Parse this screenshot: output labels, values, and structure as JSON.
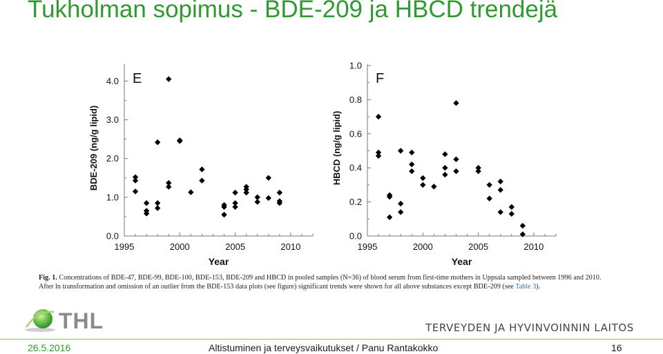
{
  "slide": {
    "title": "Tukholman sopimus - BDE-209 ja HBCD trendejä",
    "caption_fig": "Fig. 1.",
    "caption_text": "Concentrations of BDE-47, BDE-99, BDE-100, BDE-153, BDE-209 and HBCD in pooled samples (N=36) of blood serum from first-time mothers in Uppsala sampled between 1996 and 2010. After ln transformation and omission of an outlier from the BDE-153 data plots (see figure) significant trends were shown for all above substances except BDE-209 (see ",
    "caption_ref": "Table 3",
    "caption_end": ").",
    "logo_text": "THL",
    "org_name": "TERVEYDEN JA HYVINVOINNIN LAITOS",
    "footer_date": "26.5.2016",
    "footer_center": "Altistuminen ja terveysvaikutukset / Panu Rantakokko",
    "footer_page": "16"
  },
  "colors": {
    "title": "#2f9a31",
    "footer_line": "#8bbf6a",
    "marker": "#000000"
  },
  "chart_data": [
    {
      "type": "scatter",
      "panel_label": "E",
      "xlabel": "Year",
      "ylabel": "BDE-209 (ng/g lipid)",
      "xlim": [
        1995,
        2012
      ],
      "ylim": [
        0.0,
        4.4
      ],
      "xticks": [
        1995,
        2000,
        2005,
        2010
      ],
      "xtick_labels": [
        "1995",
        "2000",
        "2005",
        "2010"
      ],
      "yticks": [
        0.0,
        1.0,
        2.0,
        3.0,
        4.0
      ],
      "ytick_labels": [
        "0.0",
        "1.0",
        "2.0",
        "3.0",
        "4.0"
      ],
      "grid": false,
      "points": [
        {
          "x": 1996,
          "y": 1.52
        },
        {
          "x": 1996,
          "y": 1.43
        },
        {
          "x": 1996,
          "y": 1.15
        },
        {
          "x": 1997,
          "y": 0.85
        },
        {
          "x": 1997,
          "y": 0.65
        },
        {
          "x": 1997,
          "y": 0.58
        },
        {
          "x": 1998,
          "y": 2.42
        },
        {
          "x": 1998,
          "y": 0.85
        },
        {
          "x": 1998,
          "y": 0.72
        },
        {
          "x": 1999,
          "y": 4.05
        },
        {
          "x": 1999,
          "y": 1.37
        },
        {
          "x": 1999,
          "y": 1.27
        },
        {
          "x": 2000,
          "y": 2.47
        },
        {
          "x": 2000,
          "y": 2.45
        },
        {
          "x": 2001,
          "y": 1.13
        },
        {
          "x": 2002,
          "y": 1.72
        },
        {
          "x": 2002,
          "y": 1.43
        },
        {
          "x": 2004,
          "y": 0.8
        },
        {
          "x": 2004,
          "y": 0.75
        },
        {
          "x": 2004,
          "y": 0.55
        },
        {
          "x": 2005,
          "y": 1.12
        },
        {
          "x": 2005,
          "y": 0.85
        },
        {
          "x": 2005,
          "y": 0.75
        },
        {
          "x": 2006,
          "y": 1.27
        },
        {
          "x": 2006,
          "y": 1.2
        },
        {
          "x": 2006,
          "y": 1.12
        },
        {
          "x": 2007,
          "y": 1.0
        },
        {
          "x": 2007,
          "y": 0.88
        },
        {
          "x": 2008,
          "y": 1.5
        },
        {
          "x": 2008,
          "y": 0.98
        },
        {
          "x": 2009,
          "y": 1.12
        },
        {
          "x": 2009,
          "y": 0.9
        },
        {
          "x": 2009,
          "y": 0.85
        }
      ]
    },
    {
      "type": "scatter",
      "panel_label": "F",
      "xlabel": "Year",
      "ylabel": "HBCD (ng/g lipid)",
      "xlim": [
        1995,
        2012
      ],
      "ylim": [
        0.0,
        1.0
      ],
      "xticks": [
        1995,
        2000,
        2005,
        2010
      ],
      "xtick_labels": [
        "1995",
        "2000",
        "2005",
        "2010"
      ],
      "yticks": [
        0.0,
        0.2,
        0.4,
        0.6,
        0.8,
        1.0
      ],
      "ytick_labels": [
        "0.0",
        "0.2",
        "0.4",
        "0.6",
        "0.8",
        "1.0"
      ],
      "grid": false,
      "points": [
        {
          "x": 1996,
          "y": 0.7
        },
        {
          "x": 1996,
          "y": 0.49
        },
        {
          "x": 1996,
          "y": 0.47
        },
        {
          "x": 1997,
          "y": 0.24
        },
        {
          "x": 1997,
          "y": 0.23
        },
        {
          "x": 1997,
          "y": 0.11
        },
        {
          "x": 1998,
          "y": 0.5
        },
        {
          "x": 1998,
          "y": 0.19
        },
        {
          "x": 1998,
          "y": 0.14
        },
        {
          "x": 1999,
          "y": 0.49
        },
        {
          "x": 1999,
          "y": 0.42
        },
        {
          "x": 1999,
          "y": 0.38
        },
        {
          "x": 2000,
          "y": 0.34
        },
        {
          "x": 2000,
          "y": 0.3
        },
        {
          "x": 2001,
          "y": 0.29
        },
        {
          "x": 2002,
          "y": 0.48
        },
        {
          "x": 2002,
          "y": 0.4
        },
        {
          "x": 2002,
          "y": 0.36
        },
        {
          "x": 2003,
          "y": 0.78
        },
        {
          "x": 2003,
          "y": 0.45
        },
        {
          "x": 2003,
          "y": 0.38
        },
        {
          "x": 2005,
          "y": 0.4
        },
        {
          "x": 2005,
          "y": 0.38
        },
        {
          "x": 2006,
          "y": 0.3
        },
        {
          "x": 2006,
          "y": 0.22
        },
        {
          "x": 2007,
          "y": 0.32
        },
        {
          "x": 2007,
          "y": 0.27
        },
        {
          "x": 2007,
          "y": 0.14
        },
        {
          "x": 2008,
          "y": 0.17
        },
        {
          "x": 2008,
          "y": 0.13
        },
        {
          "x": 2009,
          "y": 0.06
        },
        {
          "x": 2009,
          "y": 0.01
        }
      ]
    }
  ]
}
